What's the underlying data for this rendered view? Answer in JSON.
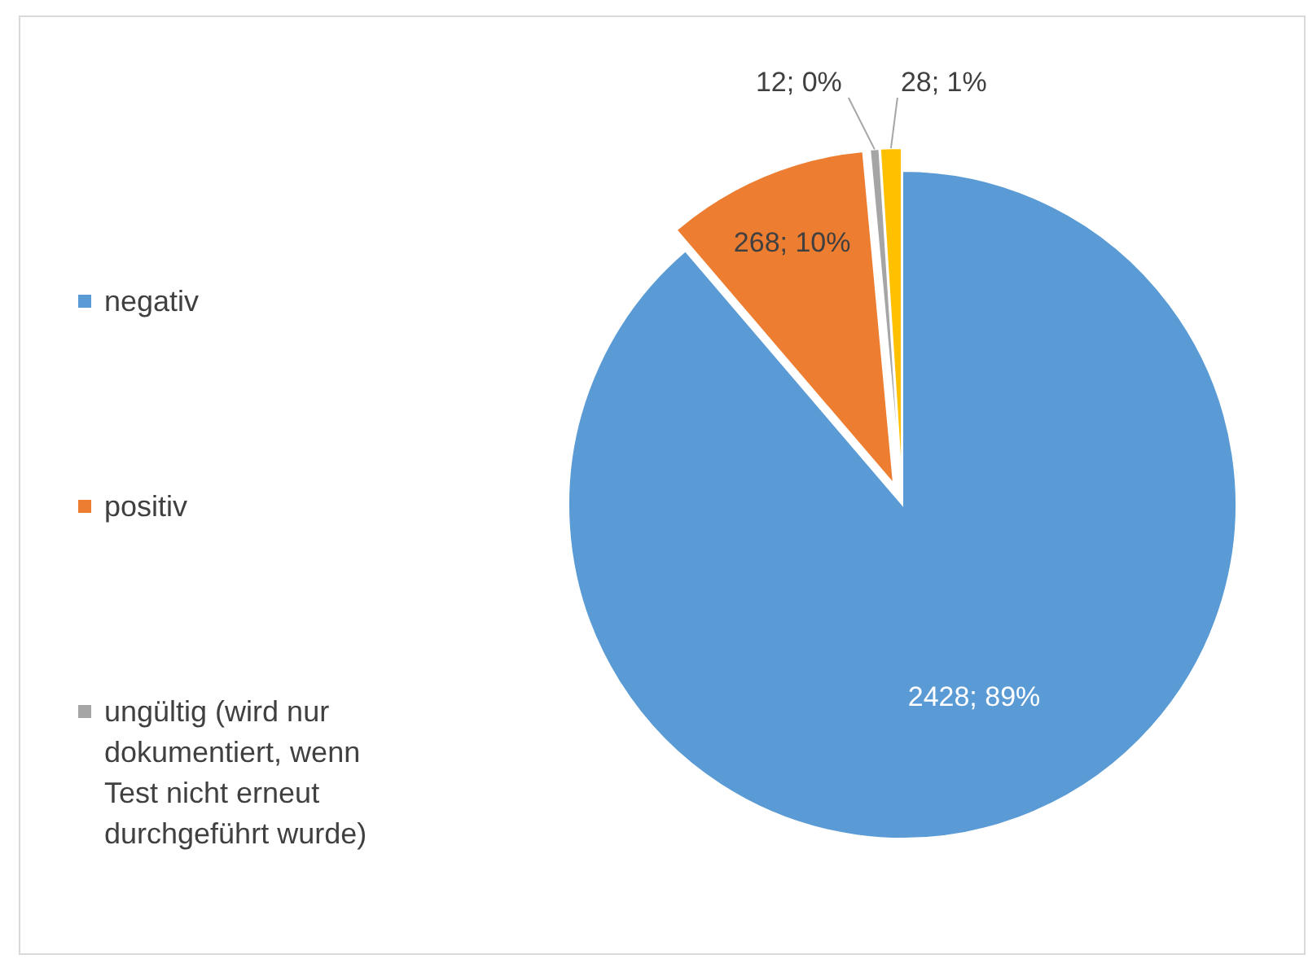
{
  "chart_data": {
    "type": "pie",
    "categories": [
      "negativ",
      "positiv",
      "ungültig (wird nur dokumentiert, wenn Test nicht erneut durchgeführt wurde)",
      null
    ],
    "values": [
      2428,
      268,
      12,
      28
    ],
    "colors": [
      "#5b9bd5",
      "#ed7d31",
      "#a5a5a5",
      "#ffc000"
    ],
    "value_labels": [
      "2428; 89%",
      "268; 10%",
      "12; 0%",
      "28; 1%"
    ],
    "legend": "left"
  }
}
